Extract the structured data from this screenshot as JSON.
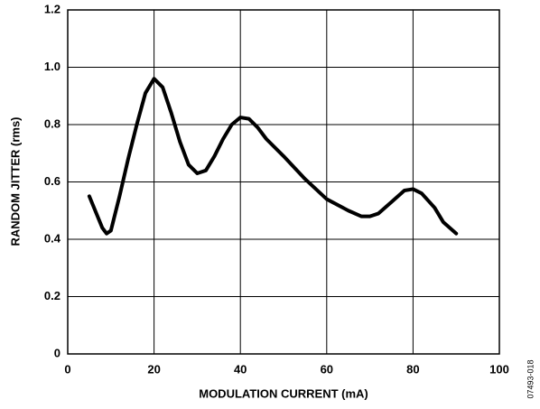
{
  "chart_data": {
    "type": "line",
    "xlabel": "MODULATION CURRENT (mA)",
    "ylabel": "RANDOM JITTER (rms)",
    "figure_id": "07493-018",
    "xlim": [
      0,
      100
    ],
    "xticks": [
      0,
      20,
      40,
      60,
      80,
      100
    ],
    "ylim": [
      0,
      1.2
    ],
    "yticks": [
      0,
      0.2,
      0.4,
      0.6,
      0.8,
      {
        "value": 1.0,
        "label": "1.0"
      },
      {
        "value": 1.2,
        "label": "1.2"
      }
    ],
    "grid": true,
    "series": [
      {
        "color": "#000000",
        "x": [
          5,
          8,
          9,
          10,
          12,
          14,
          16,
          18,
          20,
          22,
          24,
          26,
          28,
          30,
          32,
          34,
          36,
          38,
          40,
          42,
          44,
          46,
          50,
          55,
          60,
          65,
          68,
          70,
          72,
          75,
          78,
          80,
          82,
          85,
          87,
          90
        ],
        "values": [
          0.55,
          0.44,
          0.42,
          0.43,
          0.55,
          0.68,
          0.8,
          0.91,
          0.96,
          0.93,
          0.84,
          0.74,
          0.66,
          0.63,
          0.64,
          0.69,
          0.75,
          0.8,
          0.825,
          0.82,
          0.79,
          0.75,
          0.69,
          0.61,
          0.54,
          0.5,
          0.48,
          0.48,
          0.49,
          0.53,
          0.57,
          0.575,
          0.56,
          0.51,
          0.46,
          0.42
        ]
      }
    ]
  }
}
